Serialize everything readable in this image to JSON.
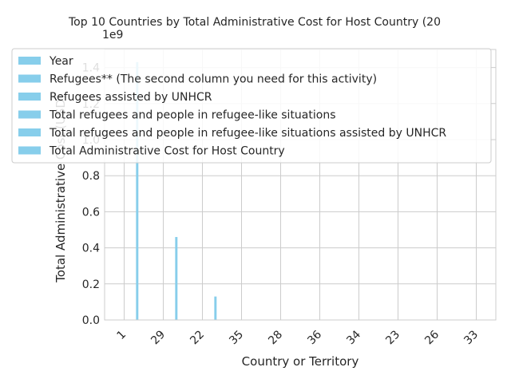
{
  "chart_data": {
    "type": "bar",
    "title": "Top 10 Countries by Total Administrative Cost for Host Country (20",
    "xlabel": "Country or Territory",
    "ylabel": "Total Administrative Cost (USD)",
    "y_offset_label": "1e9",
    "ylim": [
      0,
      1.5
    ],
    "y_ticks": [
      "0.0",
      "0.2",
      "0.4",
      "0.6",
      "0.8",
      "1.0",
      "1.2",
      "1.4"
    ],
    "y_tick_values": [
      0,
      0.2,
      0.4,
      0.6,
      0.8,
      1.0,
      1.2,
      1.4
    ],
    "categories": [
      "1",
      "29",
      "22",
      "35",
      "28",
      "36",
      "34",
      "23",
      "26",
      "33"
    ],
    "grid": true,
    "legend_position": "upper-left",
    "series": [
      {
        "name": "Year",
        "values": [
          0,
          0,
          0,
          0,
          0,
          0,
          0,
          0,
          0,
          0
        ]
      },
      {
        "name": "Refugees** (The second column you need for this activity)",
        "values": [
          0,
          0,
          0,
          0,
          0,
          0,
          0,
          0,
          0,
          0
        ]
      },
      {
        "name": "Refugees assisted by UNHCR",
        "values": [
          0,
          0,
          0,
          0,
          0,
          0,
          0,
          0,
          0,
          0
        ]
      },
      {
        "name": "Total refugees and people in refugee-like situations",
        "values": [
          0,
          0,
          0,
          0,
          0,
          0,
          0,
          0,
          0,
          0
        ]
      },
      {
        "name": "Total refugees and people in refugee-like situations assisted by UNHCR",
        "values": [
          0,
          0,
          0,
          0,
          0,
          0,
          0,
          0,
          0,
          0
        ]
      },
      {
        "name": "Total Administrative Cost for Host Country",
        "values": [
          1.43,
          0.46,
          0.13,
          0,
          0,
          0,
          0,
          0,
          0,
          0
        ]
      }
    ],
    "colors": {
      "bar": "#87ceeb",
      "grid": "#cccccc",
      "text": "#262626"
    }
  }
}
